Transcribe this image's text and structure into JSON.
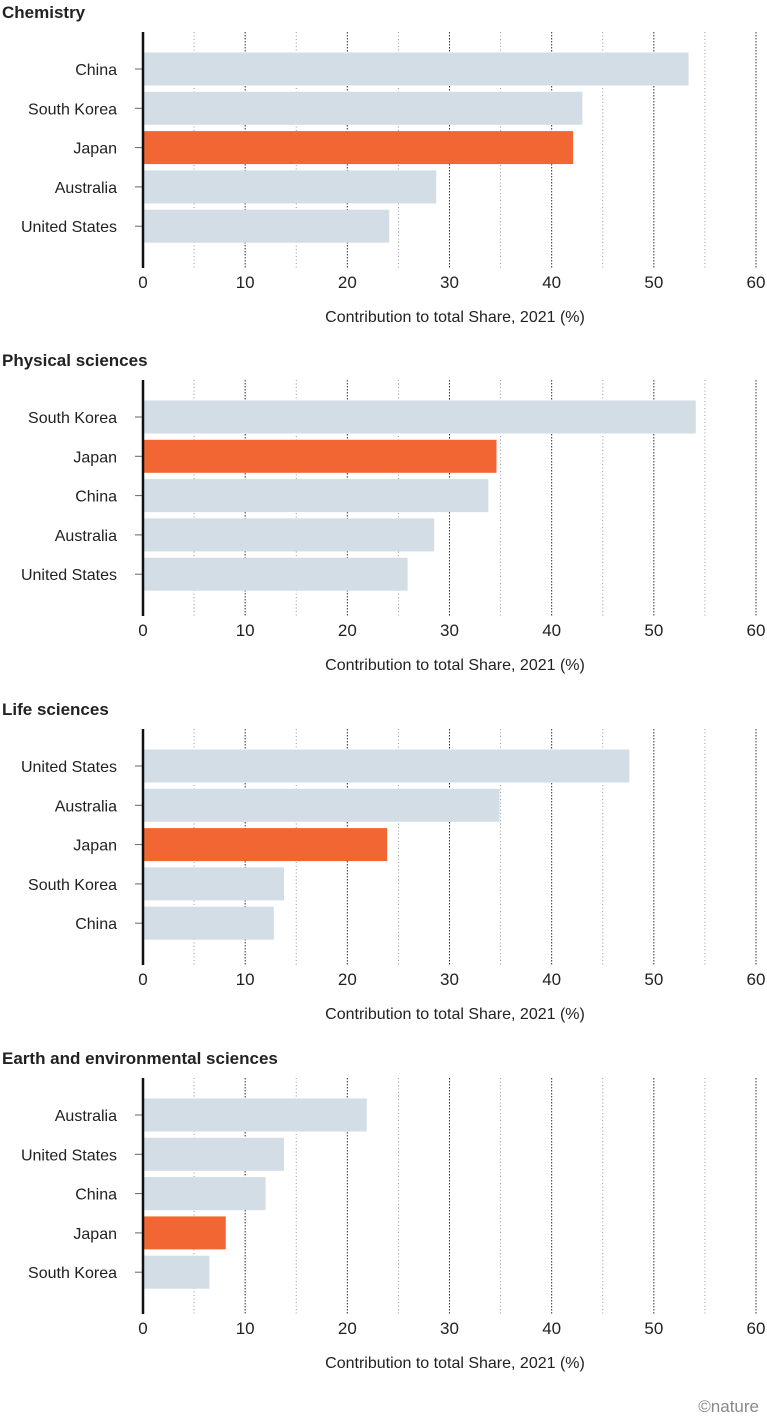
{
  "colors": {
    "highlight": "#f26633",
    "default": "#d3dde5",
    "axis": "#111111",
    "grid": "#555555"
  },
  "footer": "©nature",
  "chart_data": [
    {
      "type": "bar",
      "orientation": "horizontal",
      "title": "Chemistry",
      "categories": [
        "China",
        "South Korea",
        "Japan",
        "Australia",
        "United States"
      ],
      "values": [
        53.4,
        43.0,
        42.1,
        28.7,
        24.1
      ],
      "highlight": "Japan",
      "xlabel": "Contribution to total Share, 2021 (%)",
      "xlim": [
        0,
        60
      ],
      "xticks": [
        "0",
        "10",
        "20",
        "30",
        "40",
        "50",
        "60"
      ],
      "grid": true
    },
    {
      "type": "bar",
      "orientation": "horizontal",
      "title": "Physical sciences",
      "categories": [
        "South Korea",
        "Japan",
        "China",
        "Australia",
        "United States"
      ],
      "values": [
        54.1,
        34.6,
        33.8,
        28.5,
        25.9
      ],
      "highlight": "Japan",
      "xlabel": "Contribution to total Share, 2021 (%)",
      "xlim": [
        0,
        60
      ],
      "xticks": [
        "0",
        "10",
        "20",
        "30",
        "40",
        "50",
        "60"
      ],
      "grid": true
    },
    {
      "type": "bar",
      "orientation": "horizontal",
      "title": "Life sciences",
      "categories": [
        "United States",
        "Australia",
        "Japan",
        "South Korea",
        "China"
      ],
      "values": [
        47.6,
        34.9,
        23.9,
        13.8,
        12.8
      ],
      "highlight": "Japan",
      "xlabel": "Contribution to total Share, 2021 (%)",
      "xlim": [
        0,
        60
      ],
      "xticks": [
        "0",
        "10",
        "20",
        "30",
        "40",
        "50",
        "60"
      ],
      "grid": true
    },
    {
      "type": "bar",
      "orientation": "horizontal",
      "title": "Earth and environmental sciences",
      "categories": [
        "Australia",
        "United States",
        "China",
        "Japan",
        "South Korea"
      ],
      "values": [
        21.9,
        13.8,
        12.0,
        8.1,
        6.5
      ],
      "highlight": "Japan",
      "xlabel": "Contribution to total Share, 2021 (%)",
      "xlim": [
        0,
        60
      ],
      "xticks": [
        "0",
        "10",
        "20",
        "30",
        "40",
        "50",
        "60"
      ],
      "grid": true
    }
  ]
}
